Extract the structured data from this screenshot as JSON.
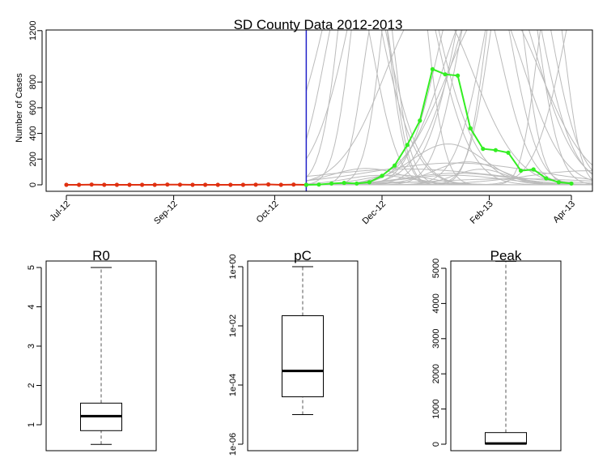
{
  "chart_data": [
    {
      "type": "line",
      "title": "SD County Data 2012-2013",
      "ylabel": "Number of Cases",
      "xlabel": "",
      "yticks": [
        "0",
        "200",
        "400",
        "600",
        "800",
        "1200"
      ],
      "xticks": [
        "Jul-12",
        "Sep-12",
        "Oct-12",
        "Dec-12",
        "Feb-13",
        "Apr-13"
      ],
      "ylim": [
        0,
        1200
      ],
      "grid": false,
      "vertical_line": {
        "color": "#2020c8"
      },
      "series": [
        {
          "role": "observed (fitting period)",
          "color": "#e03010",
          "weeks": [
            0,
            1,
            2,
            3,
            4,
            5,
            6,
            7,
            8,
            9,
            10,
            11,
            12,
            13,
            14,
            15,
            16,
            17,
            18,
            19
          ],
          "values": [
            0,
            0,
            2,
            0,
            0,
            0,
            0,
            0,
            2,
            1,
            0,
            0,
            0,
            0,
            0,
            1,
            3,
            0,
            2,
            0
          ]
        },
        {
          "role": "observed (forecast period)",
          "color": "#33ee22",
          "weeks": [
            19,
            20,
            21,
            22,
            23,
            24,
            25,
            26,
            27,
            28,
            29,
            30,
            31,
            32,
            33,
            34,
            35,
            36,
            37,
            38,
            39,
            40
          ],
          "values": [
            0,
            2,
            10,
            15,
            10,
            20,
            70,
            150,
            310,
            500,
            900,
            860,
            850,
            440,
            280,
            270,
            250,
            110,
            120,
            50,
            20,
            10
          ]
        }
      ],
      "projection_color": "#bbbbbb",
      "projections_note": "many grey simulated trajectories after the vertical line"
    },
    {
      "type": "boxplot",
      "title": "R0",
      "yticks": [
        "1",
        "2",
        "3",
        "4",
        "5"
      ],
      "box": {
        "whisker_low": 0.5,
        "q1": 0.85,
        "median": 1.22,
        "q3": 1.55,
        "whisker_high": 5.0
      }
    },
    {
      "type": "boxplot",
      "title": "pC",
      "scale": "log",
      "yticks": [
        "1e-06",
        "1e-04",
        "1e-02",
        "1e+00"
      ],
      "box": {
        "whisker_low": 1e-05,
        "q1": 4e-05,
        "median": 0.0003,
        "q3": 0.022,
        "whisker_high": 1.0
      }
    },
    {
      "type": "boxplot",
      "title": "Peak",
      "yticks": [
        "0",
        "1000",
        "2000",
        "3000",
        "4000",
        "5000"
      ],
      "box": {
        "whisker_low": 0,
        "q1": 10,
        "median": 20,
        "q3": 330,
        "whisker_high": 5200
      }
    }
  ]
}
